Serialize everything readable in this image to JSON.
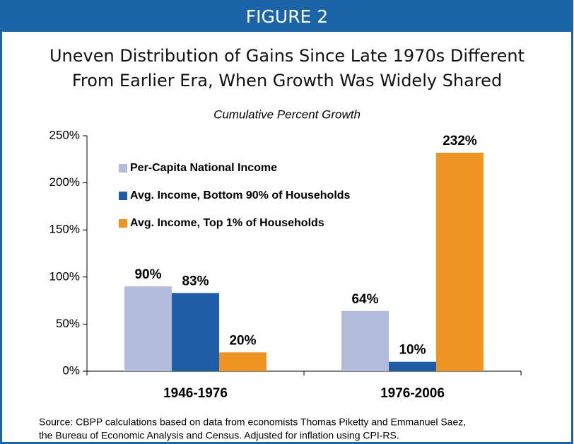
{
  "chart_data": {
    "type": "bar",
    "header": "FIGURE 2",
    "title": [
      "Uneven Distribution of Gains Since Late 1970s Different",
      "From Earlier Era, When Growth Was Widely Shared"
    ],
    "subtitle": "Cumulative Percent Growth",
    "categories": [
      "1946-1976",
      "1976-2006"
    ],
    "series": [
      {
        "name": "Per-Capita National Income",
        "color": "#b3bbdc",
        "values": [
          90,
          64
        ],
        "value_labels": [
          "90%",
          "64%"
        ]
      },
      {
        "name": "Avg. Income, Bottom 90% of Households",
        "color": "#1f5ea6",
        "values": [
          83,
          10
        ],
        "value_labels": [
          "83%",
          "10%"
        ]
      },
      {
        "name": "Avg. Income, Top 1% of Households",
        "color": "#ef9322",
        "values": [
          20,
          232
        ],
        "value_labels": [
          "20%",
          "232%"
        ]
      }
    ],
    "ylim": [
      0,
      250
    ],
    "yticks": [
      {
        "value": 0,
        "label": "0%"
      },
      {
        "value": 50,
        "label": "50%"
      },
      {
        "value": 100,
        "label": "100%"
      },
      {
        "value": 150,
        "label": "150%"
      },
      {
        "value": 200,
        "label": "200%"
      },
      {
        "value": 250,
        "label": "250%"
      }
    ],
    "legend": "upper left",
    "source": [
      "Source: CBPP calculations based on data from economists Thomas Piketty and Emmanuel Saez,",
      "the Bureau of Economic Analysis and Census. Adjusted for inflation using CPI-RS."
    ]
  }
}
